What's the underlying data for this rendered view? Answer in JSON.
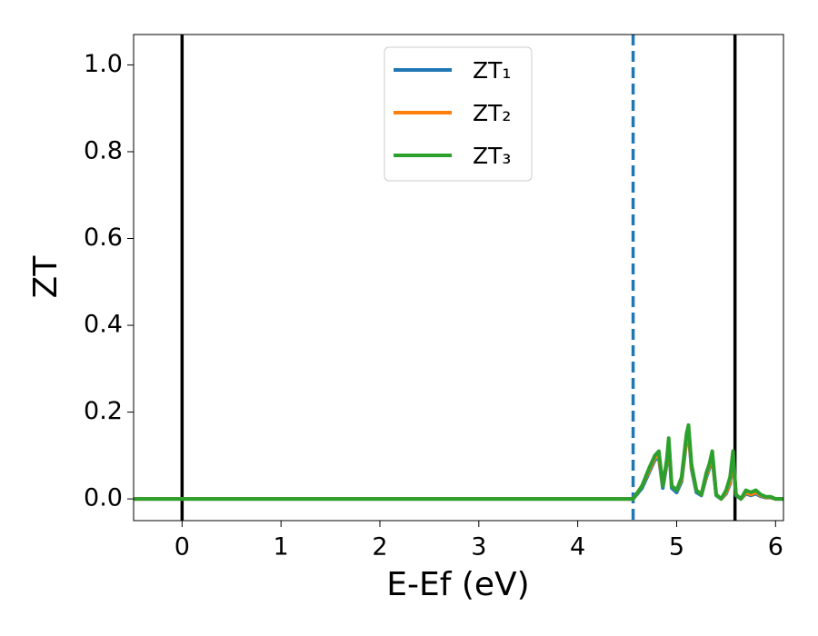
{
  "chart_data": {
    "type": "line",
    "xlabel": "E-Ef (eV)",
    "ylabel": "ZT",
    "xlim": [
      -0.49,
      6.08
    ],
    "ylim": [
      -0.05,
      1.07
    ],
    "xticks": [
      0,
      1,
      2,
      3,
      4,
      5,
      6
    ],
    "yticks": [
      {
        "value": 0,
        "label": "0.0"
      },
      {
        "value": 0.2,
        "label": "0.2"
      },
      {
        "value": 0.4,
        "label": "0.4"
      },
      {
        "value": 0.6,
        "label": "0.6"
      },
      {
        "value": 0.8,
        "label": "0.8"
      },
      {
        "value": 1.0,
        "label": "1.0"
      }
    ],
    "legend": "upper center",
    "vlines": [
      {
        "x": 0,
        "color": "#000000",
        "style": "solid"
      },
      {
        "x": 4.56,
        "color": "#1f77b4",
        "style": "dashed"
      },
      {
        "x": 5.59,
        "color": "#000000",
        "style": "solid"
      }
    ],
    "x": [
      -0.49,
      4.56,
      4.65,
      4.72,
      4.78,
      4.82,
      4.86,
      4.9,
      4.92,
      4.95,
      5.0,
      5.05,
      5.1,
      5.12,
      5.15,
      5.2,
      5.25,
      5.3,
      5.33,
      5.36,
      5.4,
      5.45,
      5.5,
      5.54,
      5.57,
      5.6,
      5.65,
      5.7,
      5.75,
      5.8,
      5.85,
      5.9,
      5.95,
      6.0,
      6.08
    ],
    "series": [
      {
        "name": "ZT₁",
        "color": "#1f77b4",
        "values": [
          0,
          0,
          0.025,
          0.06,
          0.09,
          0.095,
          0.025,
          0.08,
          0.125,
          0.025,
          0.015,
          0.04,
          0.135,
          0.155,
          0.07,
          0.015,
          0.008,
          0.05,
          0.07,
          0.095,
          0.008,
          0,
          0.012,
          0.035,
          0.095,
          0.008,
          0,
          0.012,
          0.008,
          0.012,
          0.006,
          0.003,
          0.003,
          0,
          0
        ]
      },
      {
        "name": "ZT₂",
        "color": "#ff7f0e",
        "values": [
          0,
          0,
          0.03,
          0.065,
          0.095,
          0.1,
          0.03,
          0.085,
          0.13,
          0.03,
          0.02,
          0.045,
          0.14,
          0.16,
          0.075,
          0.02,
          0.01,
          0.055,
          0.075,
          0.1,
          0.01,
          0,
          0.015,
          0.04,
          0.1,
          0.01,
          0,
          0.015,
          0.01,
          0.015,
          0.008,
          0.004,
          0.004,
          0,
          0
        ]
      },
      {
        "name": "ZT₃",
        "color": "#2ca02c",
        "values": [
          0,
          0,
          0.03,
          0.07,
          0.1,
          0.11,
          0.03,
          0.09,
          0.14,
          0.03,
          0.02,
          0.05,
          0.15,
          0.17,
          0.08,
          0.02,
          0.01,
          0.06,
          0.08,
          0.11,
          0.01,
          0,
          0.02,
          0.05,
          0.11,
          0.01,
          0,
          0.02,
          0.015,
          0.02,
          0.01,
          0.005,
          0.005,
          0,
          0
        ]
      }
    ]
  }
}
